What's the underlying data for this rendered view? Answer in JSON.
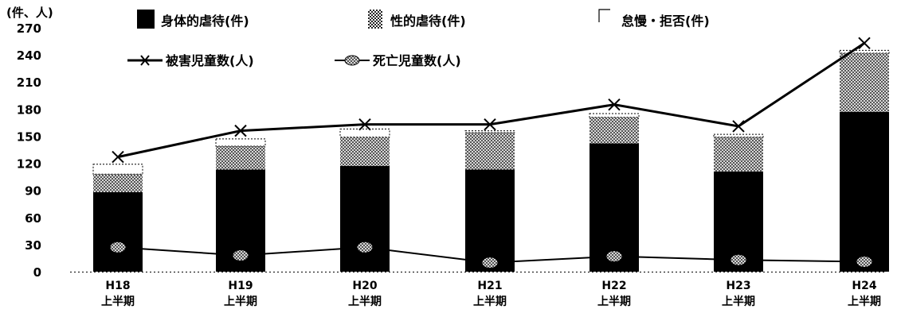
{
  "chart_data": {
    "type": "bar",
    "unit_label": "(件、人)",
    "categories": [
      [
        "H18",
        "上半期"
      ],
      [
        "H19",
        "上半期"
      ],
      [
        "H20",
        "上半期"
      ],
      [
        "H21",
        "上半期"
      ],
      [
        "H22",
        "上半期"
      ],
      [
        "H23",
        "上半期"
      ],
      [
        "H24",
        "上半期"
      ]
    ],
    "ylim": [
      0,
      270
    ],
    "yticks": [
      0,
      30,
      60,
      90,
      120,
      150,
      180,
      210,
      240,
      270
    ],
    "stacked": true,
    "series": [
      {
        "name": "身体的虐待(件)",
        "kind": "bar",
        "values": [
          88,
          113,
          117,
          113,
          142,
          111,
          177
        ],
        "color": "#000000"
      },
      {
        "name": "性的虐待(件)",
        "kind": "bar",
        "values": [
          20,
          26,
          32,
          41,
          29,
          38,
          65
        ],
        "color": "#8c8c8c"
      },
      {
        "name": "怠慢・拒否(件)",
        "kind": "bar",
        "values": [
          11,
          8,
          9,
          2,
          4,
          3,
          3
        ],
        "color": "#ffffff"
      },
      {
        "name": "被害児童数(人)",
        "kind": "line",
        "values": [
          127,
          156,
          163,
          163,
          185,
          161,
          253
        ],
        "marker": "x"
      },
      {
        "name": "死亡児童数(人)",
        "kind": "line",
        "values": [
          27,
          18,
          27,
          10,
          17,
          13,
          11
        ],
        "marker": "circle"
      }
    ],
    "legend": "top",
    "grid": false
  }
}
